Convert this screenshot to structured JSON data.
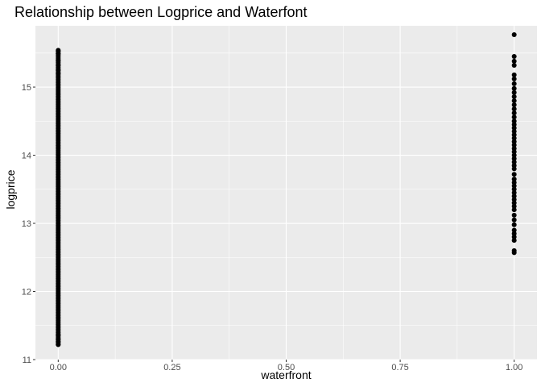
{
  "chart_data": {
    "type": "scatter",
    "title": "Relationship between Logprice and Waterfont",
    "xlabel": "waterfront",
    "ylabel": "logprice",
    "xlim": [
      -0.05,
      1.05
    ],
    "ylim": [
      11.0,
      15.9
    ],
    "x_ticks": [
      0.0,
      0.25,
      0.5,
      0.75,
      1.0
    ],
    "x_tick_labels": [
      "0.00",
      "0.25",
      "0.50",
      "0.75",
      "1.00"
    ],
    "y_ticks": [
      11,
      12,
      13,
      14,
      15
    ],
    "y_tick_labels": [
      "11",
      "12",
      "13",
      "14",
      "15"
    ],
    "grid": true,
    "legend": "none",
    "colors": {
      "panel": "#ebebeb",
      "grid": "#ffffff",
      "points": "#000000"
    },
    "groups": [
      {
        "x": 0.0,
        "y_min": 11.22,
        "y_max": 15.54,
        "outlier_y": [
          15.53,
          15.49,
          15.39,
          15.32,
          15.25,
          15.2,
          11.36,
          11.3,
          11.26,
          11.22
        ]
      },
      {
        "x": 1.0,
        "y_min": 12.57,
        "y_max": 15.77,
        "y": [
          15.77,
          15.45,
          15.38,
          15.32,
          15.18,
          15.12,
          15.05,
          14.98,
          14.92,
          14.86,
          14.8,
          14.74,
          14.68,
          14.62,
          14.56,
          14.5,
          14.45,
          14.4,
          14.35,
          14.3,
          14.25,
          14.2,
          14.15,
          14.1,
          14.05,
          14.0,
          13.95,
          13.9,
          13.85,
          13.8,
          13.72,
          13.65,
          13.6,
          13.55,
          13.5,
          13.45,
          13.4,
          13.35,
          13.3,
          13.25,
          13.2,
          13.12,
          13.05,
          12.98,
          12.9,
          12.85,
          12.8,
          12.75,
          12.6,
          12.57
        ]
      }
    ]
  }
}
